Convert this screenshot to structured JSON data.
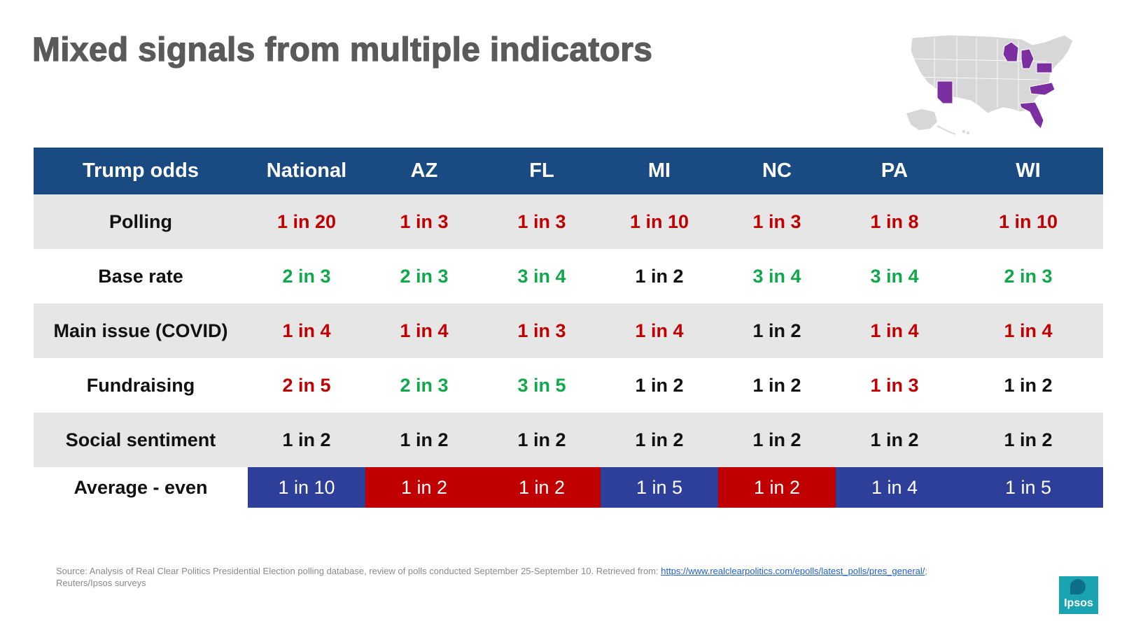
{
  "title": "Mixed signals from multiple indicators",
  "colors": {
    "header_bg": "#1a4a82",
    "negative": "#c00000",
    "positive": "#10a84a",
    "neutral": "#111111",
    "avg_blue": "#2e3f99",
    "avg_red": "#c00000",
    "highlight_state": "#7b2fa0"
  },
  "map": {
    "icon": "us-map-icon",
    "highlighted_states": [
      "AZ",
      "FL",
      "MI",
      "NC",
      "PA",
      "WI"
    ]
  },
  "table": {
    "headers": [
      "Trump odds",
      "National",
      "AZ",
      "FL",
      "MI",
      "NC",
      "PA",
      "WI"
    ],
    "rows": [
      {
        "label": "Polling",
        "cells": [
          {
            "text": "1 in 20",
            "tone": "red"
          },
          {
            "text": "1 in 3",
            "tone": "red"
          },
          {
            "text": "1 in 3",
            "tone": "red"
          },
          {
            "text": "1 in 10",
            "tone": "red"
          },
          {
            "text": "1 in 3",
            "tone": "red"
          },
          {
            "text": "1 in 8",
            "tone": "red"
          },
          {
            "text": "1 in 10",
            "tone": "red"
          }
        ]
      },
      {
        "label": "Base rate",
        "cells": [
          {
            "text": "2 in 3",
            "tone": "green"
          },
          {
            "text": "2 in 3",
            "tone": "green"
          },
          {
            "text": "3 in 4",
            "tone": "green"
          },
          {
            "text": "1 in 2",
            "tone": "black"
          },
          {
            "text": "3 in 4",
            "tone": "green"
          },
          {
            "text": "3 in 4",
            "tone": "green"
          },
          {
            "text": "2 in 3",
            "tone": "green"
          }
        ]
      },
      {
        "label": "Main issue (COVID)",
        "cells": [
          {
            "text": "1 in 4",
            "tone": "red"
          },
          {
            "text": "1 in 4",
            "tone": "red"
          },
          {
            "text": "1 in 3",
            "tone": "red"
          },
          {
            "text": "1 in 4",
            "tone": "red"
          },
          {
            "text": "1 in 2",
            "tone": "black"
          },
          {
            "text": "1 in 4",
            "tone": "red"
          },
          {
            "text": "1 in 4",
            "tone": "red"
          }
        ]
      },
      {
        "label": "Fundraising",
        "cells": [
          {
            "text": "2 in 5",
            "tone": "red"
          },
          {
            "text": "2 in 3",
            "tone": "green"
          },
          {
            "text": "3 in 5",
            "tone": "green"
          },
          {
            "text": "1 in 2",
            "tone": "black"
          },
          {
            "text": "1 in 2",
            "tone": "black"
          },
          {
            "text": "1 in 3",
            "tone": "red"
          },
          {
            "text": "1 in 2",
            "tone": "black"
          }
        ]
      },
      {
        "label": "Social sentiment",
        "cells": [
          {
            "text": "1 in 2",
            "tone": "black"
          },
          {
            "text": "1 in 2",
            "tone": "black"
          },
          {
            "text": "1 in 2",
            "tone": "black"
          },
          {
            "text": "1 in 2",
            "tone": "black"
          },
          {
            "text": "1 in 2",
            "tone": "black"
          },
          {
            "text": "1 in 2",
            "tone": "black"
          },
          {
            "text": "1 in 2",
            "tone": "black"
          }
        ]
      }
    ],
    "average": {
      "label": "Average - even",
      "cells": [
        {
          "text": "1 in 10",
          "fill": "blue"
        },
        {
          "text": "1 in 2",
          "fill": "red"
        },
        {
          "text": "1 in 2",
          "fill": "red"
        },
        {
          "text": "1 in 5",
          "fill": "blue"
        },
        {
          "text": "1 in 2",
          "fill": "red"
        },
        {
          "text": "1 in 4",
          "fill": "blue"
        },
        {
          "text": "1 in 5",
          "fill": "blue"
        }
      ]
    }
  },
  "source": {
    "prefix": "Source: Analysis of Real Clear Politics Presidential Election polling database, review of polls conducted September 25-September 10. Retrieved from: ",
    "link": "https://www.realclearpolitics.com/epolls/latest_polls/pres_general/",
    "suffix": ";",
    "line2": "Reuters/Ipsos surveys"
  },
  "logo": {
    "text": "Ipsos",
    "icon": "ipsos-logo-icon"
  }
}
